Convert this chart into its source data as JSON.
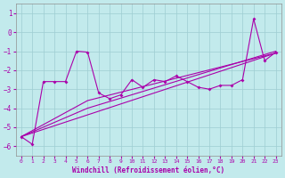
{
  "xlabel": "Windchill (Refroidissement éolien,°C)",
  "xlim": [
    -0.5,
    23.5
  ],
  "ylim": [
    -6.5,
    1.5
  ],
  "yticks": [
    1,
    0,
    -1,
    -2,
    -3,
    -4,
    -5,
    -6
  ],
  "xticks": [
    0,
    1,
    2,
    3,
    4,
    5,
    6,
    7,
    8,
    9,
    10,
    11,
    12,
    13,
    14,
    15,
    16,
    17,
    18,
    19,
    20,
    21,
    22,
    23
  ],
  "bg_color": "#c2eaec",
  "grid_color": "#9ecdd2",
  "line_color": "#aa00aa",
  "line1_x": [
    0,
    1,
    2,
    3,
    4,
    5,
    6,
    7,
    8,
    9,
    10,
    11,
    12,
    13,
    14,
    15,
    16,
    17,
    18,
    19,
    20,
    21,
    22,
    23
  ],
  "line1_y": [
    -5.5,
    -5.9,
    -2.6,
    -2.6,
    -2.6,
    -1.0,
    -1.05,
    -3.2,
    -3.5,
    -3.3,
    -2.5,
    -2.9,
    -2.5,
    -2.6,
    -2.3,
    -2.6,
    -2.9,
    -3.0,
    -2.8,
    -2.8,
    -2.5,
    0.7,
    -1.5,
    -1.05
  ],
  "line2_x": [
    0,
    6,
    23
  ],
  "line2_y": [
    -5.5,
    -3.6,
    -1.1
  ],
  "line3_x": [
    0,
    6,
    23
  ],
  "line3_y": [
    -5.5,
    -4.0,
    -1.0
  ],
  "line4_x": [
    0,
    23
  ],
  "line4_y": [
    -5.5,
    -1.1
  ]
}
